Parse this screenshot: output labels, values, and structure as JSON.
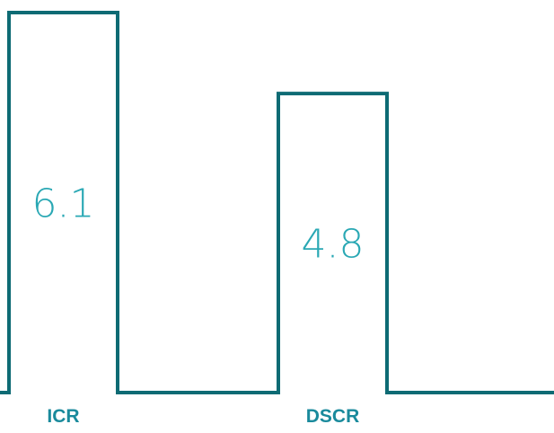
{
  "chart_data": {
    "type": "bar",
    "categories": [
      "ICR",
      "DSCR"
    ],
    "values": [
      6.1,
      4.8
    ],
    "data_labels": [
      "6.1",
      "4.8"
    ],
    "title": "",
    "xlabel": "",
    "ylabel": "",
    "ylim": [
      0,
      6.1
    ],
    "grid": false,
    "legend": "none",
    "colors": {
      "line": "#0e6b74",
      "value_label": "#2aa8b4",
      "category_label": "#1a8a9c"
    }
  }
}
